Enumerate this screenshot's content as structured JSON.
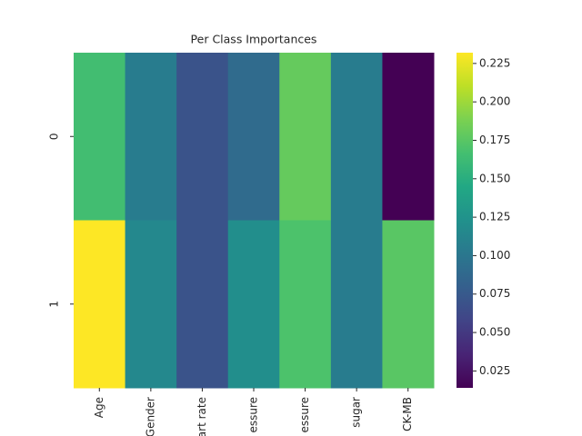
{
  "chart_data": {
    "type": "heatmap",
    "title": "Per Class Importances",
    "x_categories": [
      "Age",
      "Gender",
      "art rate",
      "essure",
      "essure",
      "sugar",
      "CK-MB"
    ],
    "y_categories": [
      "0",
      "1"
    ],
    "values": [
      [
        0.165,
        0.105,
        0.07,
        0.09,
        0.18,
        0.105,
        0.014
      ],
      [
        0.232,
        0.115,
        0.07,
        0.12,
        0.17,
        0.105,
        0.175
      ]
    ],
    "colormap": "viridis",
    "vlim": [
      0.014,
      0.232
    ],
    "colorbar_ticks": [
      0.025,
      {
        "value": 0.05,
        "label": "0.050"
      },
      0.075,
      {
        "value": 0.1,
        "label": "0.100"
      },
      0.125,
      {
        "value": 0.15,
        "label": "0.150"
      },
      0.175,
      {
        "value": 0.2,
        "label": "0.200"
      },
      0.225
    ]
  }
}
